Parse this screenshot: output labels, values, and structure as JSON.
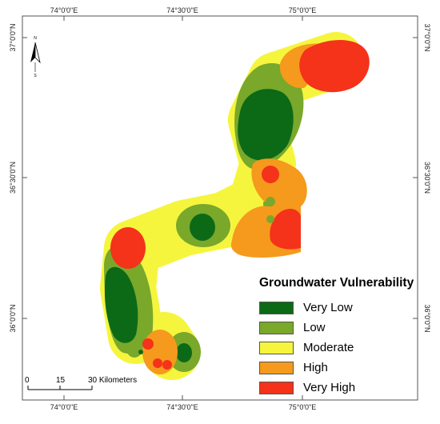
{
  "map": {
    "coordinate_labels": {
      "top": [
        "74°0'0\"E",
        "74°30'0\"E",
        "75°0'0\"E"
      ],
      "bottom": [
        "74°0'0\"E",
        "74°30'0\"E",
        "75°0'0\"E"
      ],
      "left": [
        "37°0'0\"N",
        "36°30'0\"N",
        "36°0'0\"N"
      ],
      "right": [
        "37°0'0\"N",
        "36°30'0\"N",
        "36°0'0\"N"
      ]
    },
    "north_arrow": {
      "icon": "north-arrow-icon",
      "letter": "N"
    },
    "scale_bar": {
      "labels": [
        "0",
        "15",
        "30 Kilometers"
      ]
    },
    "legend": {
      "title": "Groundwater Vulnerability",
      "classes": [
        {
          "label": "Very Low",
          "color": "#0c6a16"
        },
        {
          "label": "Low",
          "color": "#79a82a"
        },
        {
          "label": "Moderate",
          "color": "#f5f53e"
        },
        {
          "label": "High",
          "color": "#f59a1c"
        },
        {
          "label": "Very High",
          "color": "#f5321a"
        }
      ]
    }
  }
}
